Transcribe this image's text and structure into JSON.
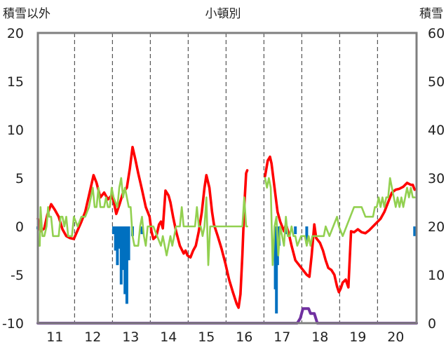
{
  "chart_data": {
    "type": "line",
    "title": "小頓別",
    "left_axis": {
      "title": "積雪以外",
      "range": [
        -10,
        20
      ],
      "ticks": [
        -10,
        -5,
        0,
        5,
        10,
        15,
        20
      ]
    },
    "right_axis": {
      "title": "積雪",
      "range": [
        0,
        60
      ],
      "ticks": [
        0,
        10,
        20,
        30,
        40,
        50,
        60
      ]
    },
    "x_axis": {
      "range": [
        10.55,
        20.55
      ],
      "categories": [
        "11",
        "12",
        "13",
        "14",
        "15",
        "16",
        "17",
        "18",
        "19",
        "20"
      ],
      "category_centers": [
        11,
        12,
        13,
        14,
        15,
        16,
        17,
        18,
        19,
        20
      ],
      "gridlines_dashed_at": [
        10.52,
        11.52,
        12.52,
        13.52,
        14.52,
        15.52,
        16.52,
        17.52,
        18.52,
        19.52,
        20.52
      ]
    },
    "grid": "vertical dashed",
    "legend": "none",
    "series": [
      {
        "axis": "left",
        "kind": "line",
        "color": "#ff0000",
        "values": [
          [
            10.55,
            0.8
          ],
          [
            10.62,
            -0.5
          ],
          [
            10.72,
            -0.2
          ],
          [
            10.8,
            1.2
          ],
          [
            10.9,
            2.3
          ],
          [
            11.0,
            1.7
          ],
          [
            11.1,
            1.0
          ],
          [
            11.2,
            -0.3
          ],
          [
            11.3,
            -1.0
          ],
          [
            11.4,
            -1.2
          ],
          [
            11.5,
            -1.3
          ],
          [
            11.6,
            -0.4
          ],
          [
            11.7,
            0.5
          ],
          [
            11.8,
            1.5
          ],
          [
            11.9,
            3.2
          ],
          [
            12.02,
            5.3
          ],
          [
            12.1,
            4.5
          ],
          [
            12.2,
            3.0
          ],
          [
            12.3,
            3.5
          ],
          [
            12.4,
            2.8
          ],
          [
            12.5,
            3.2
          ],
          [
            12.55,
            2.6
          ],
          [
            12.62,
            1.3
          ],
          [
            12.7,
            2.2
          ],
          [
            12.8,
            3.5
          ],
          [
            12.9,
            4.0
          ],
          [
            12.98,
            6.0
          ],
          [
            13.05,
            8.2
          ],
          [
            13.12,
            7.0
          ],
          [
            13.2,
            5.5
          ],
          [
            13.3,
            3.8
          ],
          [
            13.4,
            2.0
          ],
          [
            13.5,
            1.0
          ],
          [
            13.55,
            -0.5
          ],
          [
            13.6,
            -1.3
          ],
          [
            13.68,
            -1.0
          ],
          [
            13.75,
            0.2
          ],
          [
            13.8,
            0.5
          ],
          [
            13.85,
            -0.2
          ],
          [
            13.92,
            3.7
          ],
          [
            14.0,
            3.2
          ],
          [
            14.05,
            2.5
          ],
          [
            14.12,
            1.0
          ],
          [
            14.2,
            -0.5
          ],
          [
            14.3,
            -2.0
          ],
          [
            14.4,
            -2.8
          ],
          [
            14.45,
            -2.5
          ],
          [
            14.5,
            -3.0
          ],
          [
            14.58,
            -3.2
          ],
          [
            14.65,
            -2.5
          ],
          [
            14.72,
            -2.0
          ],
          [
            14.8,
            -0.5
          ],
          [
            14.88,
            1.5
          ],
          [
            14.95,
            4.0
          ],
          [
            15.0,
            5.3
          ],
          [
            15.08,
            4.0
          ],
          [
            15.15,
            1.5
          ],
          [
            15.2,
            0.2
          ],
          [
            15.3,
            -1.0
          ],
          [
            15.4,
            -2.3
          ],
          [
            15.5,
            -3.8
          ],
          [
            15.6,
            -5.5
          ],
          [
            15.7,
            -6.8
          ],
          [
            15.8,
            -8.0
          ],
          [
            15.85,
            -8.4
          ],
          [
            15.9,
            -7.0
          ],
          [
            15.95,
            -3.0
          ],
          [
            16.0,
            2.0
          ],
          [
            16.05,
            5.5
          ],
          [
            16.08,
            5.8
          ],
          null,
          [
            16.55,
            5.2
          ],
          [
            16.62,
            6.8
          ],
          [
            16.68,
            7.2
          ],
          [
            16.72,
            6.5
          ],
          [
            16.8,
            4.0
          ],
          [
            16.88,
            1.5
          ],
          [
            16.95,
            0.5
          ],
          [
            17.05,
            -0.5
          ],
          [
            17.1,
            0.2
          ],
          [
            17.18,
            -0.8
          ],
          [
            17.25,
            -2.0
          ],
          [
            17.35,
            -3.5
          ],
          [
            17.45,
            -4.0
          ],
          [
            17.55,
            -4.5
          ],
          [
            17.65,
            -5.0
          ],
          [
            17.72,
            -5.2
          ],
          [
            17.78,
            -3.0
          ],
          [
            17.85,
            0.2
          ],
          [
            17.9,
            -1.2
          ],
          [
            18.0,
            -1.7
          ],
          [
            18.08,
            -2.5
          ],
          [
            18.15,
            -3.5
          ],
          [
            18.22,
            -4.3
          ],
          [
            18.3,
            -4.5
          ],
          [
            18.38,
            -5.0
          ],
          [
            18.45,
            -6.2
          ],
          [
            18.5,
            -6.8
          ],
          [
            18.55,
            -6.4
          ],
          [
            18.6,
            -5.8
          ],
          [
            18.68,
            -5.5
          ],
          [
            18.75,
            -6.3
          ],
          [
            18.82,
            -0.5
          ],
          [
            18.9,
            -0.6
          ],
          [
            19.0,
            -0.3
          ],
          [
            19.1,
            -0.6
          ],
          [
            19.2,
            -0.7
          ],
          [
            19.3,
            -0.4
          ],
          [
            19.4,
            0.0
          ],
          [
            19.5,
            0.4
          ],
          [
            19.6,
            0.8
          ],
          [
            19.7,
            1.5
          ],
          [
            19.8,
            2.5
          ],
          [
            19.9,
            3.5
          ],
          [
            20.0,
            3.8
          ],
          [
            20.1,
            3.9
          ],
          [
            20.2,
            4.1
          ],
          [
            20.3,
            4.5
          ],
          [
            20.4,
            4.3
          ],
          [
            20.45,
            4.3
          ],
          [
            20.5,
            3.8
          ]
        ]
      },
      {
        "axis": "left",
        "kind": "line",
        "color": "#92d050",
        "values": [
          [
            10.55,
            -2.0
          ],
          [
            10.6,
            -2.0
          ],
          [
            10.62,
            2.0
          ],
          [
            10.67,
            -1.0
          ],
          [
            10.72,
            -1.0
          ],
          [
            10.78,
            0.0
          ],
          [
            10.82,
            2.0
          ],
          [
            10.85,
            1.0
          ],
          [
            10.9,
            1.0
          ],
          [
            10.95,
            -1.0
          ],
          [
            11.05,
            -1.0
          ],
          [
            11.1,
            -1.0
          ],
          [
            11.15,
            1.0
          ],
          [
            11.2,
            1.0
          ],
          [
            11.25,
            0.0
          ],
          [
            11.3,
            1.0
          ],
          [
            11.35,
            -1.0
          ],
          [
            11.45,
            -1.0
          ],
          [
            11.5,
            1.0
          ],
          [
            11.6,
            0.0
          ],
          [
            11.7,
            1.0
          ],
          [
            11.8,
            1.0
          ],
          [
            11.9,
            2.0
          ],
          [
            12.0,
            4.0
          ],
          [
            12.05,
            2.0
          ],
          [
            12.1,
            2.0
          ],
          [
            12.15,
            4.0
          ],
          [
            12.2,
            2.0
          ],
          [
            12.3,
            2.0
          ],
          [
            12.35,
            3.0
          ],
          [
            12.4,
            2.0
          ],
          [
            12.45,
            2.0
          ],
          [
            12.5,
            4.0
          ],
          [
            12.55,
            3.0
          ],
          [
            12.65,
            2.0
          ],
          [
            12.7,
            4.0
          ],
          [
            12.75,
            5.0
          ],
          [
            12.8,
            3.0
          ],
          [
            12.85,
            4.0
          ],
          [
            12.95,
            2.0
          ],
          [
            13.0,
            2.0
          ],
          [
            13.05,
            -1.0
          ],
          [
            13.1,
            -2.0
          ],
          [
            13.2,
            -2.0
          ],
          [
            13.25,
            0.0
          ],
          [
            13.3,
            1.0
          ],
          [
            13.35,
            -1.0
          ],
          [
            13.4,
            -2.0
          ],
          [
            13.45,
            0.0
          ],
          [
            13.5,
            0.0
          ],
          [
            13.6,
            0.0
          ],
          [
            13.7,
            -1.0
          ],
          [
            13.8,
            -2.0
          ],
          [
            13.85,
            -1.0
          ],
          [
            13.9,
            -2.0
          ],
          [
            13.95,
            -3.0
          ],
          [
            14.0,
            -2.0
          ],
          [
            14.05,
            -1.0
          ],
          [
            14.1,
            -2.0
          ],
          [
            14.15,
            -1.0
          ],
          [
            14.2,
            0.0
          ],
          [
            14.3,
            0.0
          ],
          [
            14.35,
            2.0
          ],
          [
            14.4,
            0.0
          ],
          [
            14.5,
            0.0
          ],
          [
            14.6,
            0.0
          ],
          [
            14.7,
            0.0
          ],
          [
            14.75,
            2.0
          ],
          [
            14.8,
            0.0
          ],
          [
            14.85,
            0.0
          ],
          [
            14.9,
            -1.0
          ],
          [
            14.95,
            0.0
          ],
          [
            15.0,
            3.0
          ],
          [
            15.05,
            -4.0
          ],
          [
            15.1,
            0.0
          ],
          [
            15.15,
            0.0
          ],
          [
            15.3,
            0.0
          ],
          [
            15.5,
            0.0
          ],
          [
            15.7,
            0.0
          ],
          [
            15.8,
            0.0
          ],
          [
            15.9,
            0.0
          ],
          [
            15.95,
            0.0
          ],
          [
            16.0,
            3.0
          ],
          [
            16.05,
            0.0
          ],
          [
            16.08,
            0.0
          ],
          null,
          [
            16.55,
            5.0
          ],
          [
            16.6,
            4.0
          ],
          [
            16.65,
            5.0
          ],
          [
            16.7,
            4.0
          ],
          [
            16.75,
            -4.0
          ],
          [
            16.8,
            0.0
          ],
          [
            16.85,
            1.0
          ],
          [
            16.9,
            -3.0
          ],
          [
            16.95,
            0.0
          ],
          [
            17.0,
            -1.0
          ],
          [
            17.05,
            -2.0
          ],
          [
            17.1,
            1.0
          ],
          [
            17.15,
            -1.0
          ],
          [
            17.2,
            -1.0
          ],
          [
            17.25,
            0.0
          ],
          [
            17.3,
            -1.0
          ],
          [
            17.35,
            -1.0
          ],
          [
            17.4,
            -2.0
          ],
          [
            17.5,
            -1.0
          ],
          [
            17.6,
            -1.0
          ],
          [
            17.65,
            -2.0
          ],
          [
            17.7,
            -1.0
          ],
          [
            17.75,
            -2.0
          ],
          [
            17.8,
            -1.0
          ],
          [
            17.9,
            -1.0
          ],
          [
            18.0,
            -1.0
          ],
          [
            18.1,
            -1.0
          ],
          [
            18.15,
            0.0
          ],
          [
            18.25,
            -1.0
          ],
          [
            18.35,
            0.0
          ],
          [
            18.45,
            1.0
          ],
          [
            18.5,
            0.0
          ],
          [
            18.6,
            -1.0
          ],
          [
            18.7,
            0.0
          ],
          [
            18.8,
            1.0
          ],
          [
            18.9,
            2.0
          ],
          [
            19.0,
            2.0
          ],
          [
            19.1,
            2.0
          ],
          [
            19.2,
            1.0
          ],
          [
            19.3,
            1.0
          ],
          [
            19.4,
            1.0
          ],
          [
            19.45,
            2.0
          ],
          [
            19.5,
            2.0
          ],
          [
            19.55,
            3.0
          ],
          [
            19.6,
            2.0
          ],
          [
            19.65,
            3.0
          ],
          [
            19.7,
            2.0
          ],
          [
            19.75,
            3.0
          ],
          [
            19.8,
            3.0
          ],
          [
            19.85,
            5.0
          ],
          [
            19.9,
            4.0
          ],
          [
            19.95,
            3.0
          ],
          [
            20.0,
            2.0
          ],
          [
            20.05,
            3.0
          ],
          [
            20.1,
            2.0
          ],
          [
            20.15,
            3.0
          ],
          [
            20.2,
            2.0
          ],
          [
            20.25,
            3.0
          ],
          [
            20.3,
            4.0
          ],
          [
            20.35,
            3.0
          ],
          [
            20.4,
            4.0
          ],
          [
            20.45,
            3.0
          ],
          [
            20.5,
            3.0
          ]
        ]
      },
      {
        "axis": "left",
        "kind": "bar",
        "color": "#0070c0",
        "baseline": 0,
        "values": [
          [
            10.55,
            -0.3
          ],
          [
            12.55,
            -0.8
          ],
          [
            12.6,
            -2.5
          ],
          [
            12.65,
            -4.0
          ],
          [
            12.68,
            -2.3
          ],
          [
            12.72,
            -1.3
          ],
          [
            12.75,
            -6.0
          ],
          [
            12.8,
            -4.5
          ],
          [
            12.85,
            -7.0
          ],
          [
            12.9,
            -8.0
          ],
          [
            12.95,
            -3.5
          ],
          [
            13.05,
            -1.0
          ],
          [
            13.3,
            -0.8
          ],
          [
            16.82,
            -6.5
          ],
          [
            16.85,
            -9.0
          ],
          [
            16.88,
            -4.0
          ],
          [
            16.92,
            -2.0
          ],
          [
            17.12,
            -0.8
          ],
          [
            17.35,
            -0.8
          ],
          [
            17.65,
            -1.8
          ],
          [
            20.5,
            -1.0
          ]
        ]
      },
      {
        "axis": "right",
        "kind": "line",
        "color": "#7030a0",
        "values": [
          [
            10.55,
            0.0
          ],
          [
            17.3,
            0.0
          ],
          [
            17.4,
            0.0
          ],
          [
            17.48,
            1.0
          ],
          [
            17.55,
            3.0
          ],
          [
            17.6,
            3.0
          ],
          [
            17.7,
            3.0
          ],
          [
            17.75,
            2.0
          ],
          [
            17.85,
            2.0
          ],
          [
            17.93,
            0.0
          ],
          [
            18.0,
            0.0
          ],
          [
            20.55,
            0.0
          ]
        ]
      }
    ]
  }
}
